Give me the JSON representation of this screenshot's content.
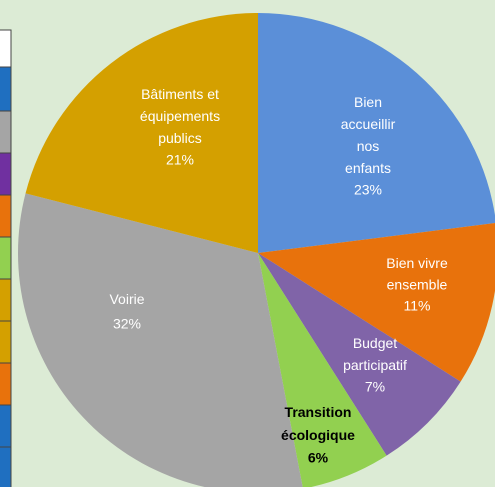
{
  "chart_data": {
    "type": "pie",
    "categories": [
      "Bien accueillir nos enfants",
      "Bien vivre ensemble",
      "Budget participatif",
      "Transition écologique",
      "Voirie",
      "Bâtiments et équipements publics"
    ],
    "values": [
      23,
      11,
      7,
      6,
      32,
      21
    ],
    "value_labels": [
      "23%",
      "11%",
      "7%",
      "6%",
      "32%",
      "21%"
    ],
    "colors": [
      "#5b8fd8",
      "#e8720c",
      "#8064a8",
      "#92d050",
      "#a5a5a5",
      "#d4a000"
    ]
  }
}
